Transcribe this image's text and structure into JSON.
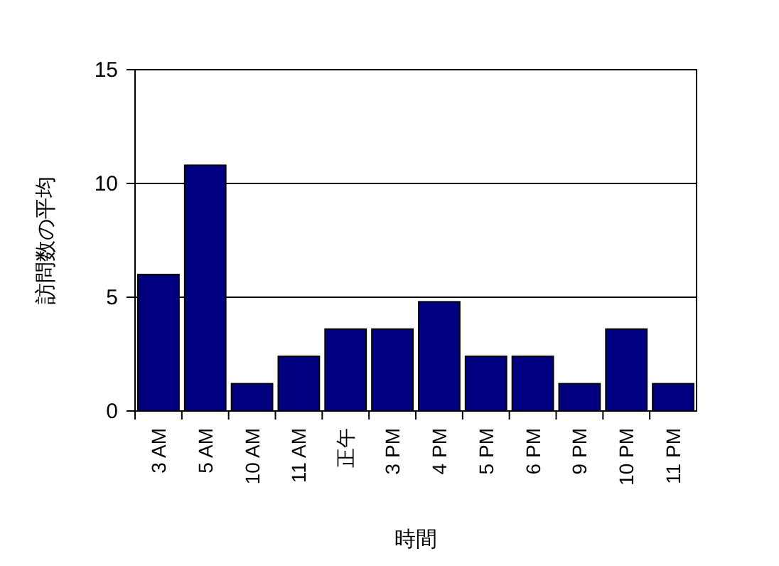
{
  "chart_data": {
    "type": "bar",
    "xlabel": "時間",
    "ylabel": "訪問数の平均",
    "categories": [
      "3 AM",
      "5 AM",
      "10 AM",
      "11 AM",
      "正午",
      "3 PM",
      "4 PM",
      "5 PM",
      "6 PM",
      "9 PM",
      "10 PM",
      "11 PM"
    ],
    "values": [
      6,
      10.8,
      1.2,
      2.4,
      3.6,
      3.6,
      4.8,
      2.4,
      2.4,
      1.2,
      3.6,
      1.2
    ],
    "color": "#000080",
    "ylim": [
      0,
      15
    ],
    "yticks": [
      0,
      5,
      10,
      15
    ],
    "grid": "y"
  }
}
